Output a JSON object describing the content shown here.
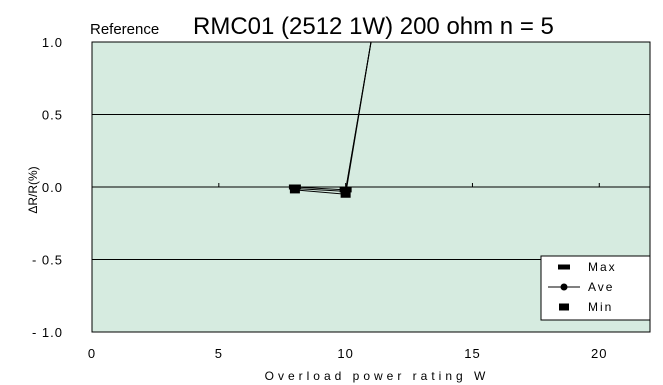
{
  "chart_data": {
    "type": "line",
    "title_prefix": "Reference",
    "title": "RMC01 (2512  1W) 200 ohm  n = 5",
    "xlabel": "Overload power rating W",
    "ylabel": "ΔR/R(%)",
    "xlim": [
      0,
      22
    ],
    "ylim": [
      -1.0,
      1.0
    ],
    "x_ticks": [
      0,
      5,
      10,
      15,
      20
    ],
    "x_tick_labels": [
      "0",
      "5",
      "10",
      "15",
      "20"
    ],
    "y_ticks": [
      1.0,
      0.5,
      0.0,
      -0.5,
      -1.0
    ],
    "y_tick_labels": [
      "1.0",
      "0.5",
      "0.0",
      "- 0.5",
      "- 1.0"
    ],
    "grid": "horizontal",
    "plot_background": "#d6ebe0",
    "line_color": "#000000",
    "legend_position": "bottom-right",
    "series": [
      {
        "name": "Max",
        "marker": "dash",
        "x": [
          8.0,
          10.0,
          11.0
        ],
        "y": [
          0.0,
          -0.02,
          1.0
        ]
      },
      {
        "name": "Ave",
        "marker": "circle",
        "x": [
          8.0,
          10.0,
          11.0
        ],
        "y": [
          -0.01,
          -0.03,
          1.0
        ]
      },
      {
        "name": "Min",
        "marker": "square",
        "x": [
          8.0,
          10.0,
          11.0
        ],
        "y": [
          -0.02,
          -0.05,
          1.0
        ]
      }
    ]
  }
}
